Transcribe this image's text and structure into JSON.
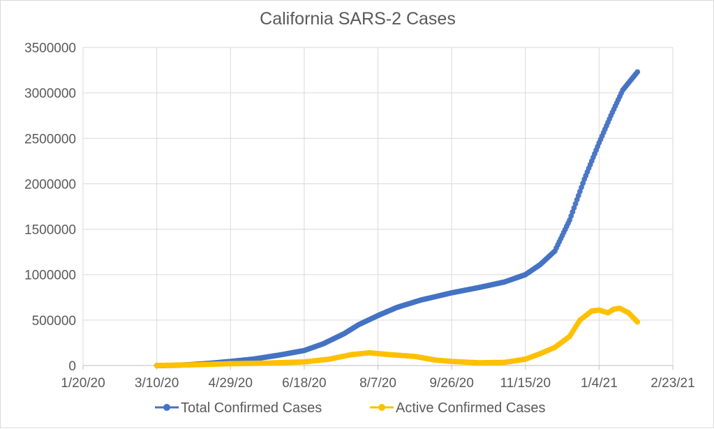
{
  "chart_data": {
    "type": "scatter",
    "title": "California SARS-2 Cases",
    "xlabel": "",
    "ylabel": "",
    "x_axis": {
      "min": "2020-01-20",
      "max": "2021-02-23",
      "ticks": [
        "2020-01-20",
        "2020-03-10",
        "2020-04-29",
        "2020-06-18",
        "2020-08-07",
        "2020-09-26",
        "2020-11-15",
        "2021-01-04",
        "2021-02-23"
      ],
      "tick_labels": [
        "1/20/20",
        "3/10/20",
        "4/29/20",
        "6/18/20",
        "8/7/20",
        "9/26/20",
        "11/15/20",
        "1/4/21",
        "2/23/21"
      ]
    },
    "y_axis": {
      "min": 0,
      "max": 3500000,
      "ticks": [
        0,
        500000,
        1000000,
        1500000,
        2000000,
        2500000,
        3000000,
        3500000
      ],
      "tick_labels": [
        "0",
        "500000",
        "1000000",
        "1500000",
        "2000000",
        "2500000",
        "3000000",
        "3500000"
      ]
    },
    "grid": true,
    "legend_position": "bottom",
    "series": [
      {
        "name": "Total Confirmed Cases",
        "color": "#4472c4",
        "points": [
          [
            "2020-03-10",
            0
          ],
          [
            "2020-03-20",
            1000
          ],
          [
            "2020-04-01",
            9000
          ],
          [
            "2020-04-15",
            25000
          ],
          [
            "2020-04-29",
            45000
          ],
          [
            "2020-05-15",
            72000
          ],
          [
            "2020-06-01",
            115000
          ],
          [
            "2020-06-18",
            165000
          ],
          [
            "2020-07-01",
            240000
          ],
          [
            "2020-07-15",
            350000
          ],
          [
            "2020-07-25",
            450000
          ],
          [
            "2020-08-07",
            550000
          ],
          [
            "2020-08-20",
            640000
          ],
          [
            "2020-09-05",
            720000
          ],
          [
            "2020-09-26",
            800000
          ],
          [
            "2020-10-15",
            860000
          ],
          [
            "2020-11-01",
            920000
          ],
          [
            "2020-11-15",
            1000000
          ],
          [
            "2020-11-25",
            1110000
          ],
          [
            "2020-12-05",
            1260000
          ],
          [
            "2020-12-15",
            1600000
          ],
          [
            "2020-12-25",
            2050000
          ],
          [
            "2021-01-04",
            2450000
          ],
          [
            "2021-01-12",
            2750000
          ],
          [
            "2021-01-20",
            3030000
          ],
          [
            "2021-01-30",
            3230000
          ]
        ]
      },
      {
        "name": "Active Confirmed Cases",
        "color": "#ffc000",
        "points": [
          [
            "2020-03-10",
            0
          ],
          [
            "2020-04-01",
            7000
          ],
          [
            "2020-04-29",
            20000
          ],
          [
            "2020-05-20",
            25000
          ],
          [
            "2020-06-18",
            40000
          ],
          [
            "2020-07-05",
            70000
          ],
          [
            "2020-07-20",
            120000
          ],
          [
            "2020-08-01",
            140000
          ],
          [
            "2020-08-15",
            120000
          ],
          [
            "2020-09-01",
            100000
          ],
          [
            "2020-09-15",
            60000
          ],
          [
            "2020-09-26",
            45000
          ],
          [
            "2020-10-15",
            30000
          ],
          [
            "2020-11-01",
            35000
          ],
          [
            "2020-11-15",
            70000
          ],
          [
            "2020-11-25",
            130000
          ],
          [
            "2020-12-05",
            200000
          ],
          [
            "2020-12-15",
            320000
          ],
          [
            "2020-12-22",
            500000
          ],
          [
            "2020-12-30",
            600000
          ],
          [
            "2021-01-04",
            610000
          ],
          [
            "2021-01-10",
            580000
          ],
          [
            "2021-01-14",
            620000
          ],
          [
            "2021-01-18",
            630000
          ],
          [
            "2021-01-24",
            580000
          ],
          [
            "2021-01-30",
            480000
          ]
        ]
      }
    ]
  }
}
